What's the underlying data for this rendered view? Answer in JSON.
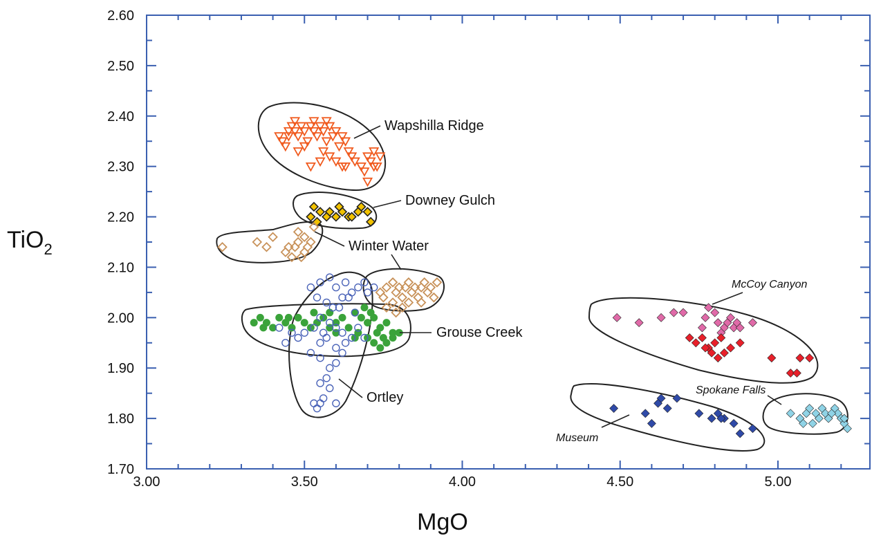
{
  "chart_data": {
    "type": "scatter",
    "title": "",
    "xlabel": "MgO",
    "ylabel_main": "TiO",
    "ylabel_sub": "2",
    "xlim": [
      3.0,
      5.3
    ],
    "ylim": [
      1.7,
      2.6
    ],
    "xticks": [
      3.0,
      3.5,
      4.0,
      4.5,
      5.0
    ],
    "xtick_labels": [
      "3.00",
      "3.50",
      "4.00",
      "4.50",
      "5.00"
    ],
    "yticks": [
      1.7,
      1.8,
      1.9,
      2.0,
      2.1,
      2.2,
      2.3,
      2.4,
      2.5,
      2.6
    ],
    "ytick_labels": [
      "1.70",
      "1.80",
      "1.90",
      "2.00",
      "2.10",
      "2.20",
      "2.30",
      "2.40",
      "2.50",
      "2.60"
    ],
    "grid": false,
    "frame_color": "#3a5fb0",
    "series": [
      {
        "name": "Wapshilla Ridge",
        "marker": "triangle-down-open",
        "color": "#f05a1e",
        "label_style": "normal",
        "points": [
          [
            3.42,
            2.36
          ],
          [
            3.43,
            2.35
          ],
          [
            3.44,
            2.34
          ],
          [
            3.45,
            2.37
          ],
          [
            3.46,
            2.38
          ],
          [
            3.47,
            2.37
          ],
          [
            3.48,
            2.36
          ],
          [
            3.49,
            2.38
          ],
          [
            3.5,
            2.37
          ],
          [
            3.51,
            2.35
          ],
          [
            3.52,
            2.38
          ],
          [
            3.53,
            2.37
          ],
          [
            3.54,
            2.36
          ],
          [
            3.55,
            2.38
          ],
          [
            3.56,
            2.37
          ],
          [
            3.57,
            2.35
          ],
          [
            3.58,
            2.38
          ],
          [
            3.59,
            2.36
          ],
          [
            3.6,
            2.37
          ],
          [
            3.61,
            2.34
          ],
          [
            3.62,
            2.36
          ],
          [
            3.63,
            2.35
          ],
          [
            3.64,
            2.33
          ],
          [
            3.58,
            2.32
          ],
          [
            3.6,
            2.31
          ],
          [
            3.62,
            2.3
          ],
          [
            3.55,
            2.31
          ],
          [
            3.52,
            2.3
          ],
          [
            3.65,
            2.32
          ],
          [
            3.7,
            2.32
          ],
          [
            3.71,
            2.31
          ],
          [
            3.72,
            2.3
          ],
          [
            3.73,
            2.3
          ],
          [
            3.74,
            2.32
          ],
          [
            3.69,
            2.29
          ],
          [
            3.66,
            2.31
          ],
          [
            3.68,
            2.3
          ],
          [
            3.48,
            2.33
          ],
          [
            3.5,
            2.34
          ],
          [
            3.45,
            2.36
          ],
          [
            3.47,
            2.39
          ],
          [
            3.53,
            2.39
          ],
          [
            3.57,
            2.39
          ],
          [
            3.56,
            2.33
          ],
          [
            3.63,
            2.3
          ],
          [
            3.72,
            2.33
          ],
          [
            3.7,
            2.27
          ]
        ]
      },
      {
        "name": "Downey Gulch",
        "marker": "diamond",
        "color": "#f2c200",
        "label_style": "normal",
        "points": [
          [
            3.52,
            2.2
          ],
          [
            3.53,
            2.22
          ],
          [
            3.55,
            2.21
          ],
          [
            3.58,
            2.21
          ],
          [
            3.6,
            2.2
          ],
          [
            3.62,
            2.21
          ],
          [
            3.64,
            2.2
          ],
          [
            3.68,
            2.22
          ],
          [
            3.7,
            2.21
          ],
          [
            3.71,
            2.19
          ],
          [
            3.57,
            2.2
          ],
          [
            3.65,
            2.2
          ],
          [
            3.54,
            2.19
          ],
          [
            3.61,
            2.22
          ],
          [
            3.67,
            2.21
          ]
        ]
      },
      {
        "name": "Winter Water",
        "marker": "diamond-open",
        "color": "#c8925a",
        "label_style": "normal",
        "points": [
          [
            3.24,
            2.14
          ],
          [
            3.35,
            2.15
          ],
          [
            3.38,
            2.14
          ],
          [
            3.4,
            2.16
          ],
          [
            3.44,
            2.13
          ],
          [
            3.46,
            2.12
          ],
          [
            3.47,
            2.14
          ],
          [
            3.48,
            2.15
          ],
          [
            3.49,
            2.12
          ],
          [
            3.5,
            2.13
          ],
          [
            3.5,
            2.16
          ],
          [
            3.52,
            2.15
          ],
          [
            3.53,
            2.18
          ],
          [
            3.48,
            2.17
          ],
          [
            3.45,
            2.14
          ],
          [
            3.51,
            2.14
          ]
        ]
      },
      {
        "name": "Grouse Creek",
        "marker": "diamond-open",
        "color": "#c8925a",
        "label_style": "normal",
        "points": [
          [
            3.74,
            2.05
          ],
          [
            3.76,
            2.06
          ],
          [
            3.78,
            2.07
          ],
          [
            3.79,
            2.05
          ],
          [
            3.8,
            2.06
          ],
          [
            3.81,
            2.04
          ],
          [
            3.82,
            2.06
          ],
          [
            3.83,
            2.07
          ],
          [
            3.84,
            2.05
          ],
          [
            3.85,
            2.06
          ],
          [
            3.86,
            2.04
          ],
          [
            3.87,
            2.06
          ],
          [
            3.88,
            2.07
          ],
          [
            3.89,
            2.05
          ],
          [
            3.9,
            2.06
          ],
          [
            3.91,
            2.04
          ],
          [
            3.92,
            2.07
          ],
          [
            3.87,
            2.03
          ],
          [
            3.76,
            2.02
          ],
          [
            3.79,
            2.01
          ],
          [
            3.83,
            2.03
          ],
          [
            3.75,
            2.04
          ],
          [
            3.78,
            2.03
          ],
          [
            3.81,
            2.02
          ]
        ]
      },
      {
        "name": "Grouse Creek",
        "marker": "circle",
        "color": "#3aa33a",
        "label_style": "none",
        "points": [
          [
            3.34,
            1.99
          ],
          [
            3.36,
            2.0
          ],
          [
            3.38,
            1.99
          ],
          [
            3.4,
            1.98
          ],
          [
            3.42,
            2.0
          ],
          [
            3.44,
            1.99
          ],
          [
            3.46,
            1.98
          ],
          [
            3.48,
            2.0
          ],
          [
            3.5,
            1.99
          ],
          [
            3.52,
            1.98
          ],
          [
            3.54,
            1.99
          ],
          [
            3.56,
            2.0
          ],
          [
            3.58,
            1.98
          ],
          [
            3.6,
            1.99
          ],
          [
            3.62,
            2.0
          ],
          [
            3.64,
            1.98
          ],
          [
            3.66,
            2.01
          ],
          [
            3.68,
            2.0
          ],
          [
            3.7,
            1.99
          ],
          [
            3.72,
            2.0
          ],
          [
            3.74,
            1.98
          ],
          [
            3.76,
            1.99
          ],
          [
            3.78,
            1.97
          ],
          [
            3.8,
            1.97
          ],
          [
            3.66,
            1.96
          ],
          [
            3.7,
            1.96
          ],
          [
            3.72,
            1.95
          ],
          [
            3.74,
            1.94
          ],
          [
            3.76,
            1.95
          ],
          [
            3.78,
            1.96
          ],
          [
            3.69,
            2.02
          ],
          [
            3.71,
            2.01
          ],
          [
            3.58,
            2.01
          ],
          [
            3.37,
            1.98
          ],
          [
            3.45,
            2.0
          ],
          [
            3.53,
            2.01
          ],
          [
            3.6,
            1.97
          ],
          [
            3.67,
            1.97
          ],
          [
            3.73,
            1.97
          ],
          [
            3.75,
            1.96
          ]
        ]
      },
      {
        "name": "Ortley",
        "marker": "circle-open",
        "color": "#4a63b8",
        "label_style": "normal",
        "points": [
          [
            3.52,
            2.06
          ],
          [
            3.55,
            2.07
          ],
          [
            3.58,
            2.08
          ],
          [
            3.6,
            2.06
          ],
          [
            3.63,
            2.07
          ],
          [
            3.65,
            2.05
          ],
          [
            3.67,
            2.06
          ],
          [
            3.69,
            2.07
          ],
          [
            3.7,
            2.05
          ],
          [
            3.72,
            2.06
          ],
          [
            3.54,
            2.04
          ],
          [
            3.57,
            2.03
          ],
          [
            3.61,
            2.02
          ],
          [
            3.64,
            2.04
          ],
          [
            3.66,
            2.01
          ],
          [
            3.55,
            2.0
          ],
          [
            3.58,
            1.99
          ],
          [
            3.6,
            1.98
          ],
          [
            3.62,
            1.97
          ],
          [
            3.57,
            1.96
          ],
          [
            3.55,
            1.95
          ],
          [
            3.6,
            1.94
          ],
          [
            3.63,
            1.95
          ],
          [
            3.5,
            1.97
          ],
          [
            3.48,
            1.96
          ],
          [
            3.46,
            1.97
          ],
          [
            3.44,
            1.95
          ],
          [
            3.42,
            1.98
          ],
          [
            3.52,
            1.93
          ],
          [
            3.55,
            1.92
          ],
          [
            3.58,
            1.9
          ],
          [
            3.6,
            1.91
          ],
          [
            3.62,
            1.93
          ],
          [
            3.57,
            1.88
          ],
          [
            3.55,
            1.87
          ],
          [
            3.58,
            1.86
          ],
          [
            3.53,
            1.83
          ],
          [
            3.55,
            1.83
          ],
          [
            3.54,
            1.82
          ],
          [
            3.56,
            1.84
          ],
          [
            3.6,
            1.83
          ],
          [
            3.65,
            1.96
          ],
          [
            3.67,
            1.98
          ],
          [
            3.69,
            1.96
          ],
          [
            3.53,
            1.98
          ],
          [
            3.59,
            2.02
          ],
          [
            3.62,
            2.04
          ],
          [
            3.56,
            1.97
          ]
        ]
      },
      {
        "name": "McCoy Canyon",
        "marker": "diamond",
        "color": "#e06aa8",
        "label_style": "italic",
        "points": [
          [
            4.49,
            2.0
          ],
          [
            4.56,
            1.99
          ],
          [
            4.63,
            2.0
          ],
          [
            4.67,
            2.01
          ],
          [
            4.7,
            2.01
          ],
          [
            4.77,
            2.0
          ],
          [
            4.78,
            2.02
          ],
          [
            4.8,
            2.01
          ],
          [
            4.81,
            1.99
          ],
          [
            4.83,
            1.98
          ],
          [
            4.84,
            1.99
          ],
          [
            4.85,
            2.0
          ],
          [
            4.86,
            1.98
          ],
          [
            4.87,
            1.99
          ],
          [
            4.88,
            1.98
          ],
          [
            4.92,
            1.99
          ],
          [
            4.82,
            1.97
          ],
          [
            4.76,
            1.98
          ]
        ]
      },
      {
        "name": "McCoy Canyon",
        "marker": "diamond",
        "color": "#e8202a",
        "label_style": "none",
        "points": [
          [
            4.72,
            1.96
          ],
          [
            4.74,
            1.95
          ],
          [
            4.76,
            1.96
          ],
          [
            4.78,
            1.94
          ],
          [
            4.79,
            1.93
          ],
          [
            4.8,
            1.95
          ],
          [
            4.82,
            1.96
          ],
          [
            4.83,
            1.93
          ],
          [
            4.85,
            1.94
          ],
          [
            4.88,
            1.95
          ],
          [
            4.81,
            1.92
          ],
          [
            4.77,
            1.94
          ],
          [
            4.98,
            1.92
          ],
          [
            5.04,
            1.89
          ],
          [
            5.06,
            1.89
          ],
          [
            5.07,
            1.92
          ],
          [
            5.1,
            1.92
          ]
        ]
      },
      {
        "name": "Museum",
        "marker": "diamond",
        "color": "#2f4aa8",
        "label_style": "italic",
        "points": [
          [
            4.48,
            1.82
          ],
          [
            4.58,
            1.81
          ],
          [
            4.6,
            1.79
          ],
          [
            4.63,
            1.84
          ],
          [
            4.65,
            1.82
          ],
          [
            4.68,
            1.84
          ],
          [
            4.75,
            1.81
          ],
          [
            4.79,
            1.8
          ],
          [
            4.81,
            1.81
          ],
          [
            4.83,
            1.8
          ],
          [
            4.86,
            1.79
          ],
          [
            4.88,
            1.77
          ],
          [
            4.92,
            1.78
          ],
          [
            4.82,
            1.8
          ],
          [
            4.62,
            1.83
          ]
        ]
      },
      {
        "name": "Spokane Falls",
        "marker": "diamond",
        "color": "#8fd3e6",
        "label_style": "italic",
        "points": [
          [
            5.04,
            1.81
          ],
          [
            5.07,
            1.8
          ],
          [
            5.09,
            1.81
          ],
          [
            5.1,
            1.82
          ],
          [
            5.12,
            1.81
          ],
          [
            5.14,
            1.82
          ],
          [
            5.15,
            1.81
          ],
          [
            5.16,
            1.8
          ],
          [
            5.18,
            1.82
          ],
          [
            5.19,
            1.81
          ],
          [
            5.2,
            1.8
          ],
          [
            5.21,
            1.79
          ],
          [
            5.22,
            1.78
          ],
          [
            5.21,
            1.8
          ],
          [
            5.08,
            1.79
          ],
          [
            5.13,
            1.8
          ],
          [
            5.17,
            1.81
          ],
          [
            5.11,
            1.79
          ]
        ]
      }
    ],
    "group_labels": [
      {
        "text": "Wapshilla Ridge",
        "style": "normal"
      },
      {
        "text": "Downey Gulch",
        "style": "normal"
      },
      {
        "text": "Winter Water",
        "style": "normal"
      },
      {
        "text": "Grouse Creek",
        "style": "normal"
      },
      {
        "text": "Ortley",
        "style": "normal"
      },
      {
        "text": "McCoy Canyon",
        "style": "italic"
      },
      {
        "text": "Spokane Falls",
        "style": "italic"
      },
      {
        "text": "Museum",
        "style": "italic"
      }
    ]
  }
}
